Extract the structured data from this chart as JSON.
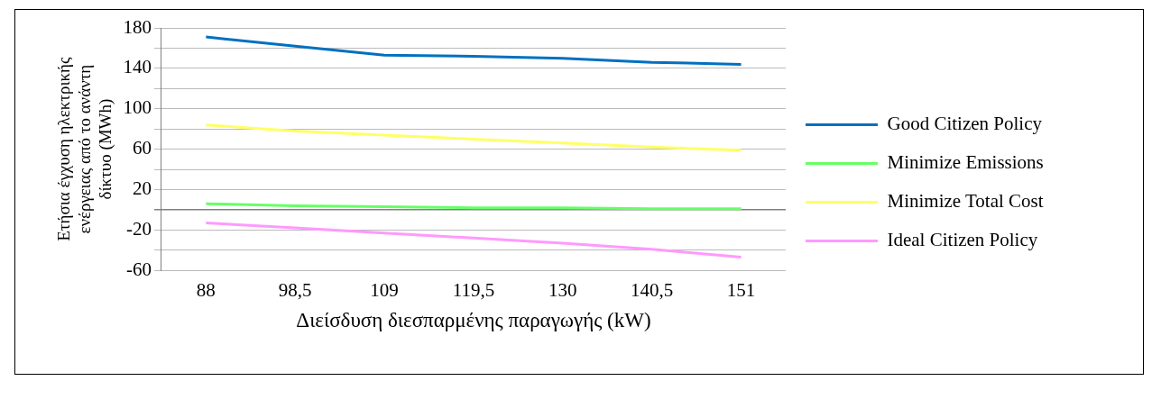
{
  "chart_data": {
    "type": "line",
    "xlabel": "Διείσδυση διεσπαρμένης παραγωγής (kW)",
    "ylabel": "Ετήσια έγχυση ηλεκτρικής ενέργειας από το ανάντη δίκτυο (MWh)",
    "categories": [
      "88",
      "98,5",
      "109",
      "119,5",
      "130",
      "140,5",
      "151"
    ],
    "series": [
      {
        "name": "Good Citizen Policy",
        "color": "#0070c0",
        "values": [
          171,
          162,
          153,
          152,
          150,
          146,
          144
        ]
      },
      {
        "name": "Minimize Emissions",
        "color": "#66ff66",
        "values": [
          6,
          4,
          3,
          2,
          2,
          1,
          1
        ]
      },
      {
        "name": "Minimize Total Cost",
        "color": "#ffff66",
        "values": [
          84,
          78,
          74,
          70,
          66,
          62,
          59
        ]
      },
      {
        "name": "Ideal Citizen Policy",
        "color": "#ff99ff",
        "values": [
          -13,
          -18,
          -23,
          -28,
          -33,
          -39,
          -47
        ]
      }
    ],
    "ylim": [
      -60,
      180
    ],
    "yticks": [
      -60,
      {
        "value": -40,
        "label": null
      },
      -20,
      {
        "value": 0,
        "label": null
      },
      20,
      {
        "value": 40,
        "label": null
      },
      60,
      {
        "value": 80,
        "label": null
      },
      100,
      {
        "value": 120,
        "label": null
      },
      140,
      {
        "value": 160,
        "label": null
      },
      180
    ],
    "grid": "y",
    "legend": "right",
    "marker": "none",
    "line_style": "solid"
  }
}
